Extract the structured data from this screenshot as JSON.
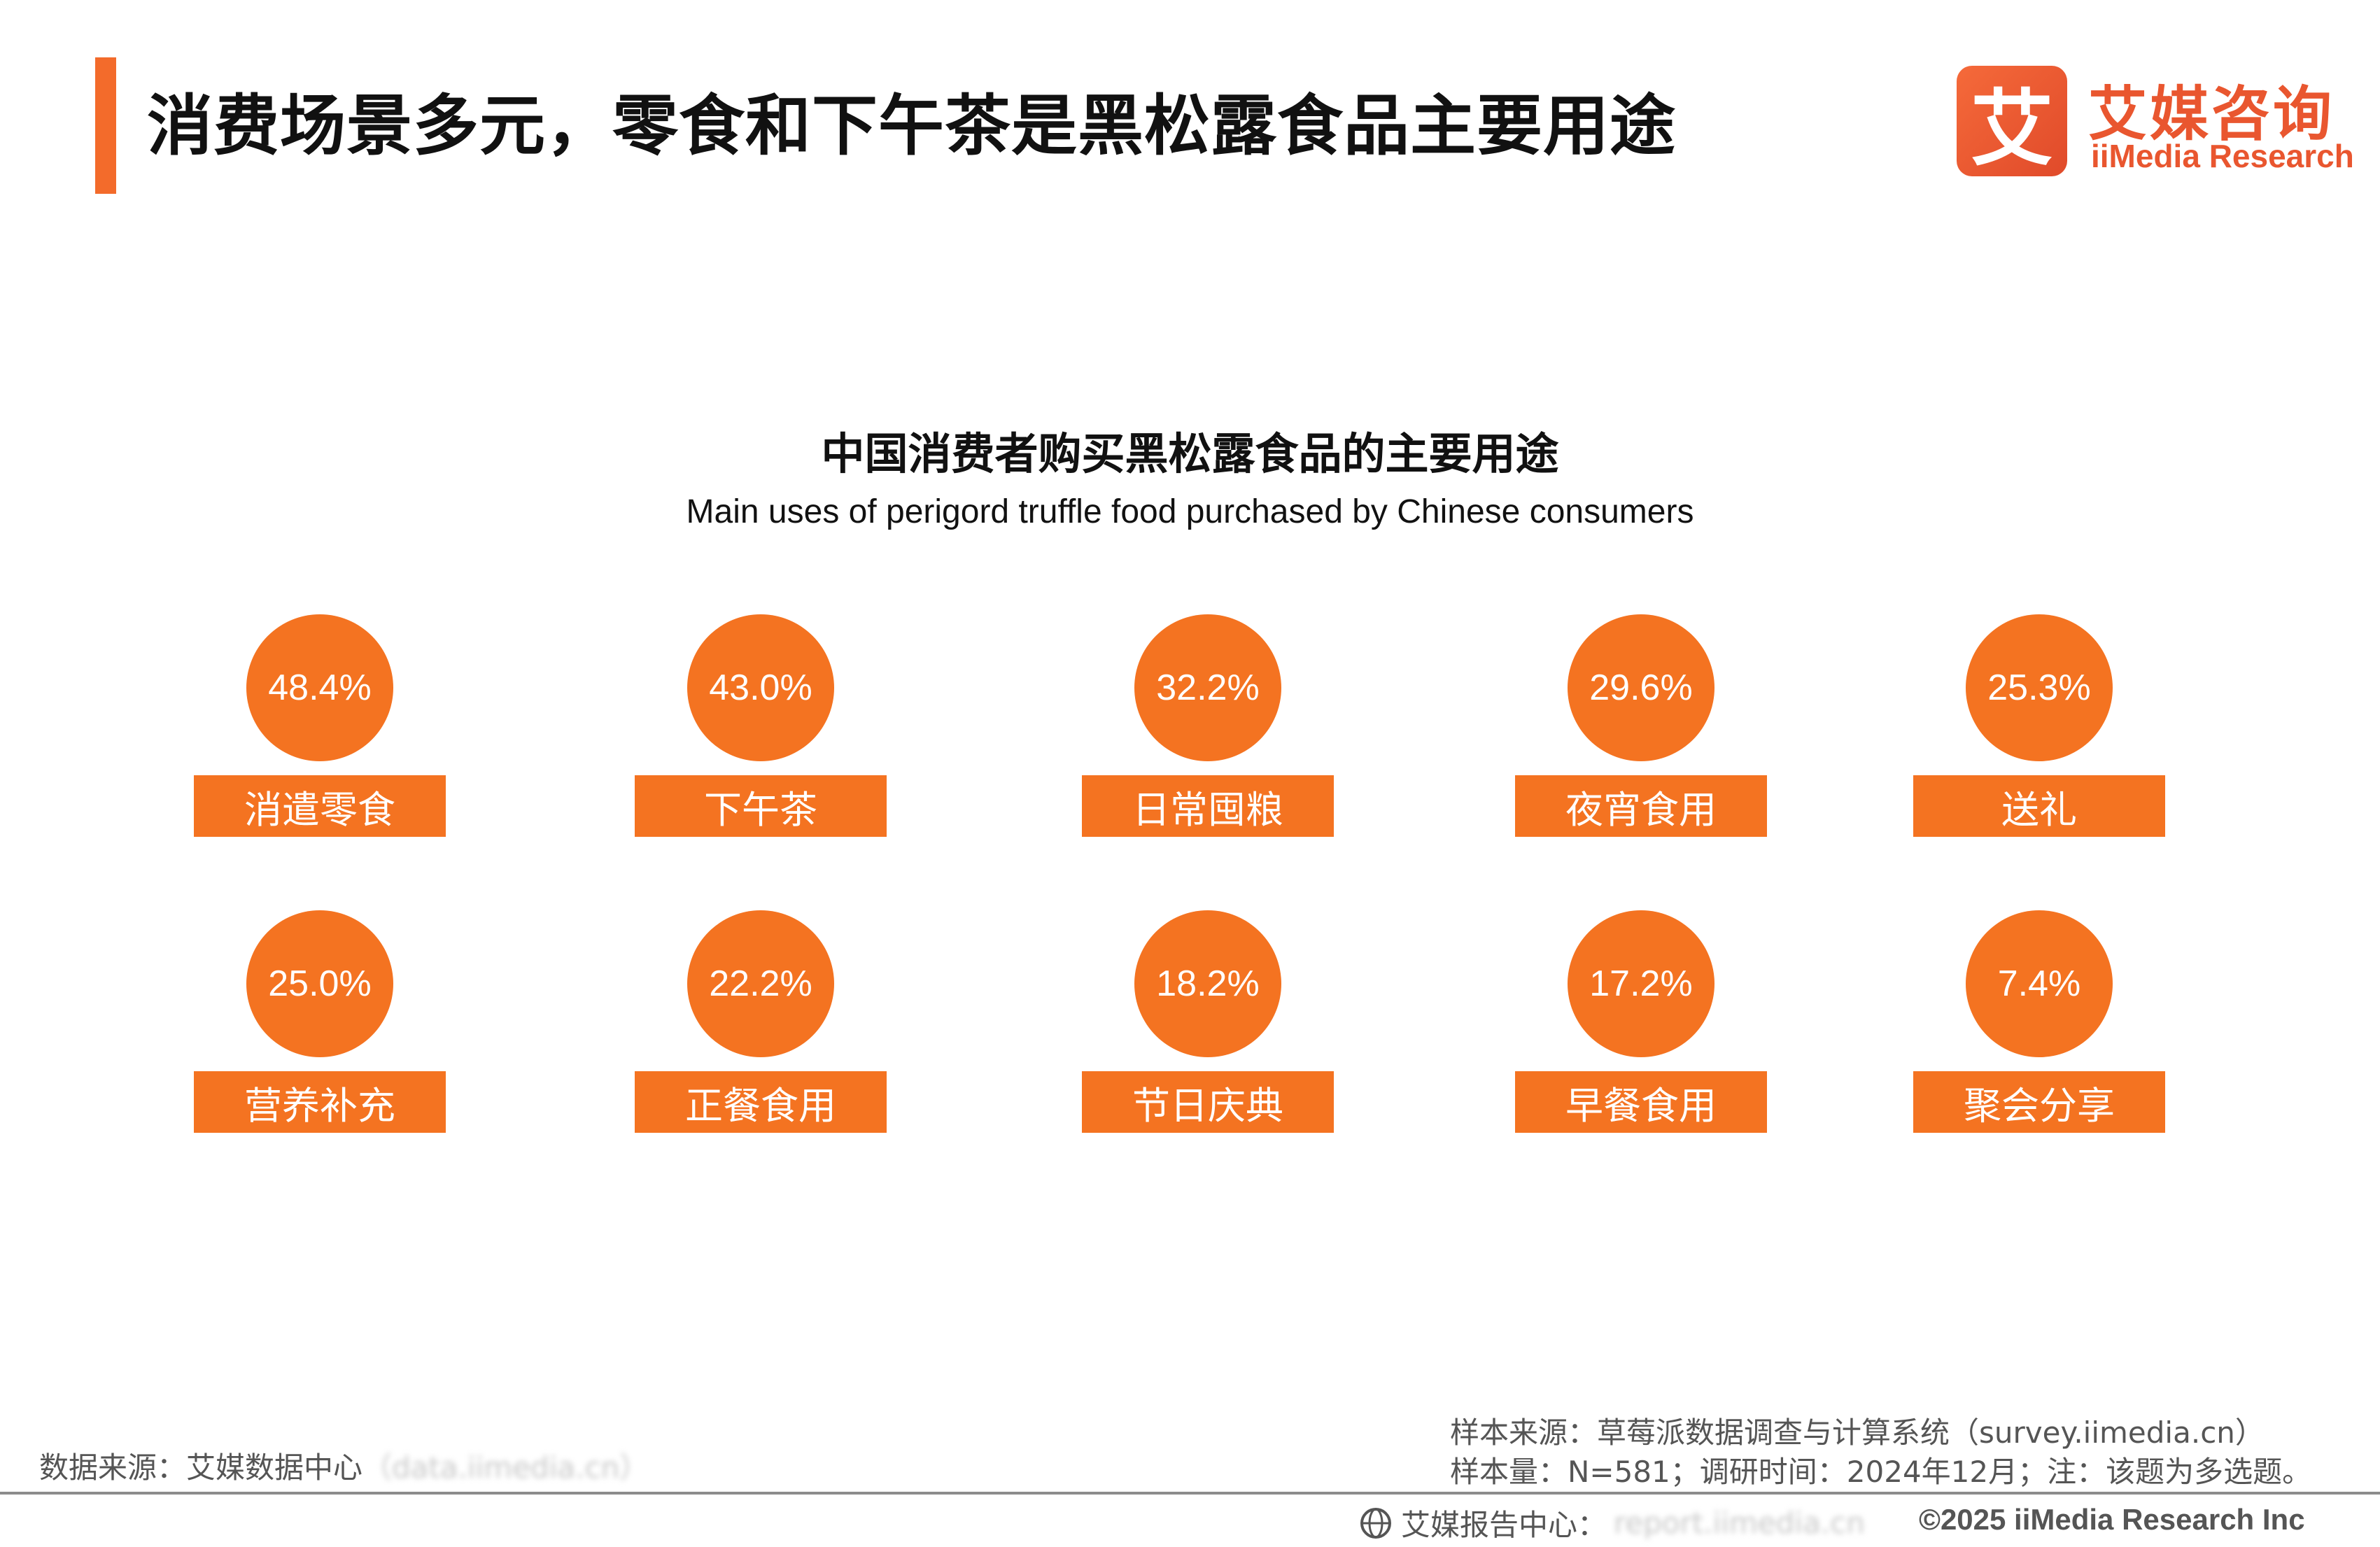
{
  "header": {
    "title": "消费场景多元，零食和下午茶是黑松露食品主要用途"
  },
  "logo": {
    "mark": "艾",
    "name_cn": "艾媒咨询",
    "name_en": "iiMedia Research"
  },
  "chart_data": {
    "type": "bubble-grid",
    "title": "中国消费者购买黑松露食品的主要用途",
    "subtitle": "Main uses of perigord truffle food purchased by Chinese consumers",
    "unit": "%",
    "categories": [
      "消遣零食",
      "下午茶",
      "日常囤粮",
      "夜宵食用",
      "送礼",
      "营养补充",
      "正餐食用",
      "节日庆典",
      "早餐食用",
      "聚会分享"
    ],
    "values": [
      48.4,
      43.0,
      32.2,
      29.6,
      25.3,
      25.0,
      22.2,
      18.2,
      17.2,
      7.4
    ],
    "value_labels": [
      "48.4%",
      "43.0%",
      "32.2%",
      "29.6%",
      "25.3%",
      "25.0%",
      "22.2%",
      "18.2%",
      "17.2%",
      "7.4%"
    ],
    "color": "#f47321"
  },
  "footer": {
    "data_source_prefix": "数据来源：艾媒数据中心",
    "data_source_link": "（data.iimedia.cn）",
    "sample_source": "样本来源：草莓派数据调查与计算系统（survey.iimedia.cn）",
    "sample_size": "样本量：N=581；调研时间：2024年12月；注：该题为多选题。",
    "report_center": "艾媒报告中心：",
    "report_link": "report.iimedia.cn",
    "copyright": "©2025  iiMedia Research  Inc"
  },
  "colors": {
    "accent": "#f36b2b",
    "brand": "#e9562f"
  }
}
